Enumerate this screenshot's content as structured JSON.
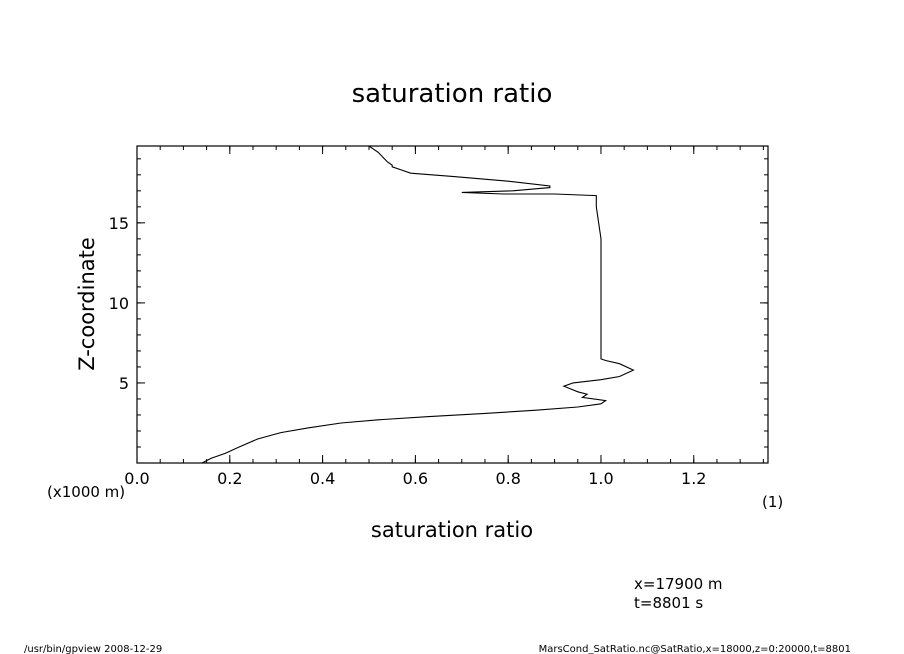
{
  "chart_data": {
    "type": "line",
    "title": "saturation ratio",
    "xlabel": "saturation ratio",
    "ylabel": "Z-coordinate",
    "x_unit": "(1)",
    "y_unit": "(x1000 m)",
    "xlim": [
      0.0,
      1.36
    ],
    "ylim": [
      0,
      19.8
    ],
    "xticks": [
      0.0,
      0.2,
      0.4,
      0.6,
      0.8,
      1.0,
      1.2
    ],
    "xtick_labels": [
      "0.0",
      "0.2",
      "0.4",
      "0.6",
      "0.8",
      "1.0",
      "1.2"
    ],
    "yticks": [
      5,
      10,
      15
    ],
    "ytick_labels": [
      "5",
      "10",
      "15"
    ],
    "grid": false,
    "series": [
      {
        "x": [
          0.14,
          0.16,
          0.19,
          0.22,
          0.26,
          0.31,
          0.37,
          0.44,
          0.52,
          0.63,
          0.75,
          0.86,
          0.95,
          1.0,
          1.01,
          0.96,
          0.97,
          0.95,
          0.92,
          0.94,
          1.0,
          1.04,
          1.07,
          1.04,
          1.01,
          1.0,
          1.0,
          1.0,
          1.0,
          1.0,
          0.99,
          0.99,
          0.9,
          0.79,
          0.7,
          0.81,
          0.89,
          0.89,
          0.8,
          0.68,
          0.59,
          0.57,
          0.55,
          0.55,
          0.54,
          0.53,
          0.52,
          0.51,
          0.5
        ],
        "y": [
          0.0,
          0.3,
          0.6,
          1.0,
          1.5,
          1.9,
          2.2,
          2.5,
          2.7,
          2.9,
          3.1,
          3.3,
          3.5,
          3.7,
          3.9,
          4.1,
          4.3,
          4.45,
          4.8,
          5.0,
          5.2,
          5.4,
          5.8,
          6.2,
          6.4,
          6.5,
          8.0,
          10.0,
          12.0,
          14.0,
          16.0,
          16.7,
          16.8,
          16.8,
          16.9,
          17.0,
          17.2,
          17.3,
          17.6,
          17.9,
          18.1,
          18.3,
          18.5,
          18.6,
          18.8,
          19.1,
          19.4,
          19.6,
          19.8
        ]
      }
    ]
  },
  "annotations": {
    "x_coord": "x=17900  m",
    "t_coord": "t=8801  s"
  },
  "footer": {
    "left": "/usr/bin/gpview   2008-12-29",
    "right": "MarsCond_SatRatio.nc@SatRatio,x=18000,z=0:20000,t=8801"
  }
}
